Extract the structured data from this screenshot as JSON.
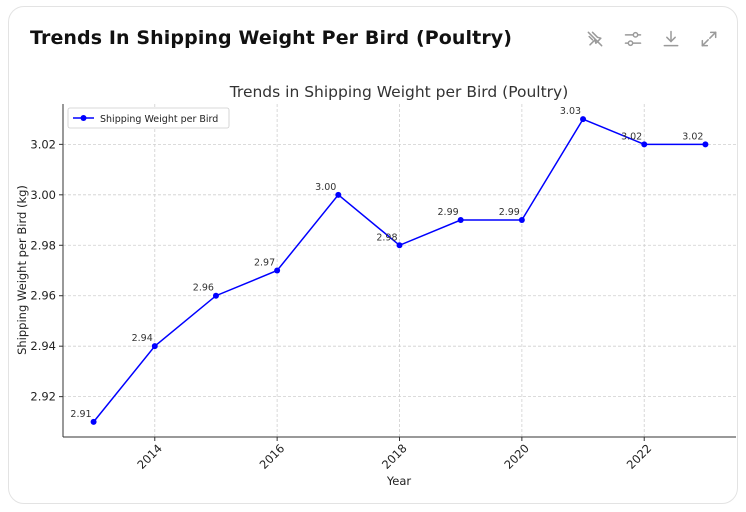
{
  "card": {
    "title": "Trends In Shipping Weight Per Bird (Poultry)"
  },
  "toolbar": {
    "icons": [
      "pin-off-icon",
      "sliders-icon",
      "download-icon",
      "expand-icon"
    ]
  },
  "chart_data": {
    "type": "line",
    "title": "Trends in Shipping Weight per Bird (Poultry)",
    "xlabel": "Year",
    "ylabel": "Shipping Weight per Bird (kg)",
    "x": [
      2013,
      2014,
      2015,
      2016,
      2017,
      2018,
      2019,
      2020,
      2021,
      2022,
      2023
    ],
    "x_ticks": [
      "2014",
      "2016",
      "2018",
      "2020",
      "2022"
    ],
    "y_ticks": [
      "2.92",
      "2.94",
      "2.96",
      "2.98",
      "3.00",
      "3.02"
    ],
    "xlim": [
      2012.5,
      2023.5
    ],
    "ylim": [
      2.904,
      3.036
    ],
    "grid": true,
    "legend_position": "top-left",
    "series": [
      {
        "name": "Shipping Weight per Bird",
        "color": "#0000ff",
        "values": [
          2.91,
          2.94,
          2.96,
          2.97,
          3.0,
          2.98,
          2.99,
          2.99,
          3.03,
          3.02,
          3.02
        ],
        "labels": [
          "2.91",
          "2.94",
          "2.96",
          "2.97",
          "3.00",
          "2.98",
          "2.99",
          "2.99",
          "3.03",
          "3.02",
          "3.02"
        ]
      }
    ]
  }
}
